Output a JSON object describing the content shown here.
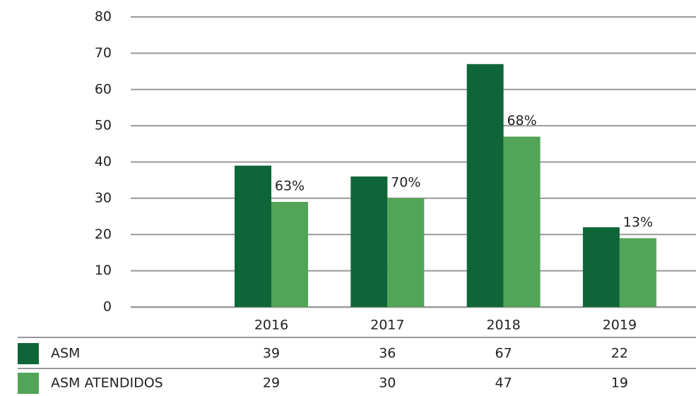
{
  "chart_data": {
    "type": "bar",
    "categories": [
      "2016",
      "2017",
      "2018",
      "2019"
    ],
    "series": [
      {
        "name": "ASM",
        "color": "#0e6638",
        "values": [
          39,
          36,
          67,
          22
        ]
      },
      {
        "name": "ASM ATENDIDOS",
        "color": "#52a557",
        "values": [
          29,
          30,
          47,
          19
        ]
      }
    ],
    "annotations": [
      "63%",
      "70%",
      "68%",
      "13%"
    ],
    "ylim": [
      0,
      80
    ],
    "yticks": [
      0,
      10,
      20,
      30,
      40,
      50,
      60,
      70,
      80
    ],
    "grid": true
  }
}
